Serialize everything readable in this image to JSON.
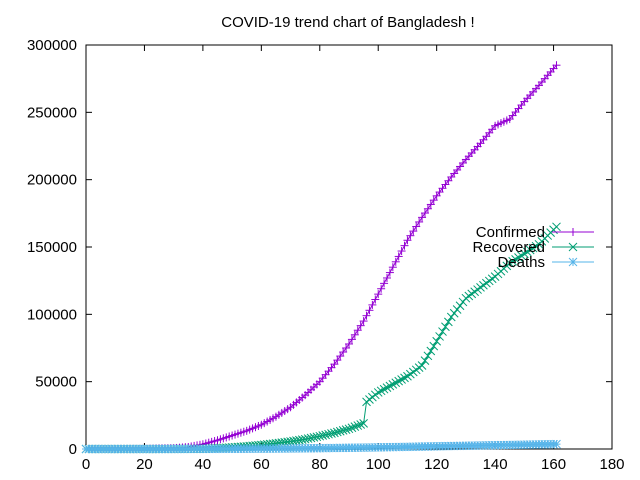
{
  "chart_data": {
    "type": "line",
    "title": "COVID-19 trend chart of Bangladesh !",
    "xlabel": "",
    "ylabel": "",
    "xlim": [
      0,
      180
    ],
    "ylim": [
      0,
      300000
    ],
    "x_ticks": [
      0,
      20,
      40,
      60,
      80,
      100,
      120,
      140,
      160,
      180
    ],
    "y_ticks": [
      0,
      50000,
      100000,
      150000,
      200000,
      250000,
      300000
    ],
    "grid": false,
    "legend_position": "right",
    "series": [
      {
        "name": "Confirmed",
        "color": "#9400d3",
        "marker": "plus",
        "x": [
          0,
          10,
          20,
          30,
          35,
          40,
          45,
          50,
          55,
          60,
          65,
          70,
          75,
          80,
          85,
          90,
          95,
          100,
          105,
          110,
          115,
          120,
          125,
          130,
          135,
          140,
          145,
          150,
          155,
          161
        ],
        "y": [
          0,
          10,
          60,
          600,
          1500,
          3500,
          6500,
          10000,
          13500,
          18000,
          24000,
          31000,
          40000,
          50000,
          63000,
          78000,
          95000,
          115000,
          135000,
          155000,
          172000,
          188000,
          202000,
          215000,
          227000,
          240000,
          245000,
          258000,
          270000,
          285000
        ]
      },
      {
        "name": "Recovered",
        "color": "#009e73",
        "marker": "cross",
        "x": [
          0,
          10,
          20,
          30,
          40,
          45,
          50,
          55,
          60,
          65,
          70,
          75,
          80,
          85,
          90,
          95,
          96,
          100,
          105,
          110,
          115,
          120,
          125,
          130,
          135,
          140,
          145,
          150,
          155,
          161
        ],
        "y": [
          0,
          0,
          10,
          50,
          200,
          600,
          1200,
          2000,
          3000,
          4200,
          5600,
          7300,
          9500,
          12000,
          15000,
          19000,
          35000,
          42000,
          48000,
          54000,
          62000,
          80000,
          98000,
          112000,
          120000,
          128000,
          138000,
          145000,
          152000,
          165000
        ]
      },
      {
        "name": "Deaths",
        "color": "#56b4e9",
        "marker": "star",
        "x": [
          0,
          10,
          20,
          30,
          40,
          50,
          60,
          70,
          80,
          90,
          100,
          110,
          120,
          130,
          140,
          150,
          161
        ],
        "y": [
          0,
          0,
          5,
          20,
          50,
          150,
          250,
          400,
          600,
          900,
          1200,
          1600,
          2000,
          2400,
          2800,
          3200,
          3600
        ]
      }
    ]
  }
}
